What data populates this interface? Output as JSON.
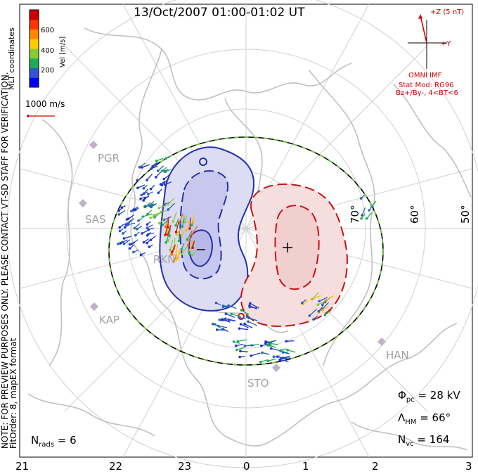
{
  "title": "13/Oct/2007 01:00-01:02 UT",
  "colorbar": {
    "label": "Vel [m/s]",
    "ticks": [
      "600",
      "400",
      "200"
    ],
    "colors": [
      "#0000ff",
      "#3355cc",
      "#22aa55",
      "#88cc33",
      "#ffcc00",
      "#ff8800",
      "#ff3300",
      "#cc0000"
    ]
  },
  "coord_label": "MLT coordinates",
  "scale": {
    "label": "1000 m/s"
  },
  "imf": {
    "z_label": "+Z (5 nT)",
    "y_label": "+Y",
    "source": "OMNI IMF",
    "stat_mod": "Stat Mod: RG96",
    "condition": "Bz+/By-, 4<BT<6"
  },
  "disclaimer": "NOTE: FOR PREVIEW PURPOSES ONLY. PLEASE CONTACT VT-SD STAFF FOR VERIFICATION.",
  "fit_info": "FitOrder: 8, mapEX format",
  "stations": [
    "PGR",
    "SAS",
    "RKN",
    "KAP",
    "STO",
    "HAN"
  ],
  "latitudes": [
    "70°",
    "60°",
    "50°"
  ],
  "mlt_axis": [
    "21",
    "22",
    "23",
    "0",
    "1",
    "2",
    "3"
  ],
  "stats": {
    "phi_pc": "Φ",
    "phi_sub": "pc",
    "phi_val": "= 28 kV",
    "lambda": "Λ",
    "lambda_sub": "HM",
    "lambda_val": "= 66°",
    "nvc": "N",
    "nvc_sub": "vc",
    "nvc_val": "= 164",
    "nrads": "N",
    "nrads_sub": "rads",
    "nrads_val": "= 6"
  },
  "colors": {
    "negative_cell": "#2233aa",
    "negative_fill": "#dcdcf4",
    "positive_cell": "#cc1111",
    "positive_fill": "#f7dede",
    "grid": "#d0d0d0",
    "coast": "#c0c0c0",
    "station": "#c0b0c8",
    "accent_red": "#d40000"
  }
}
